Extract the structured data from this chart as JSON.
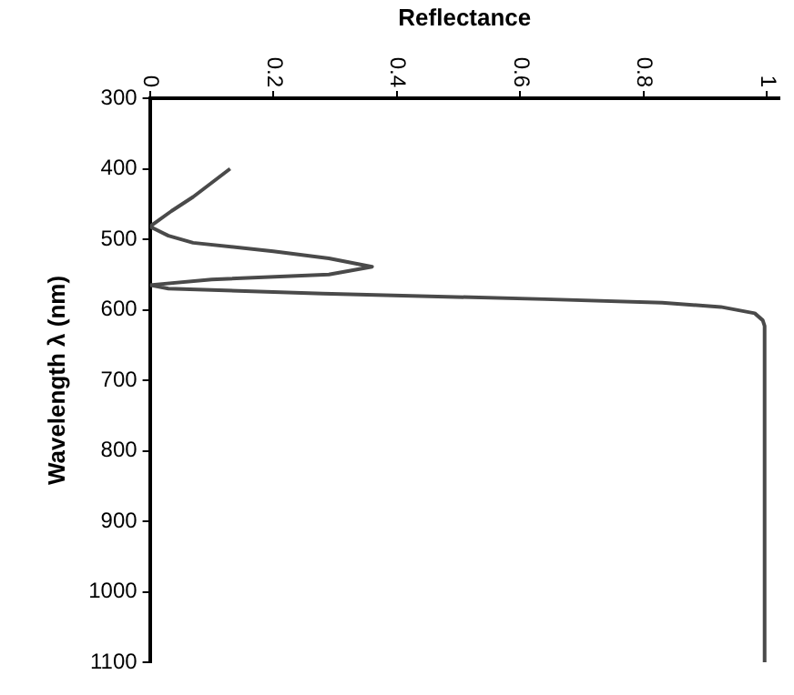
{
  "chart_data": {
    "type": "line",
    "orientation": "horizontal",
    "xlabel": "Reflectance",
    "ylabel": "Wavelength λ (nm)",
    "x": [
      400,
      420,
      440,
      460,
      482,
      495,
      505,
      517,
      527,
      539,
      550,
      557,
      565,
      570,
      577,
      585,
      590,
      596,
      605,
      615,
      623,
      700,
      800,
      900,
      1000,
      1100
    ],
    "series": [
      {
        "color": "#4a4a4a",
        "values": [
          0.13,
          0.1,
          0.07,
          0.035,
          0.0,
          0.03,
          0.07,
          0.2,
          0.29,
          0.36,
          0.29,
          0.1,
          0.0,
          0.03,
          0.28,
          0.64,
          0.83,
          0.925,
          0.98,
          0.993,
          0.996,
          0.996,
          0.996,
          0.996,
          0.996,
          0.996
        ]
      }
    ],
    "xlim": [
      0,
      1.02
    ],
    "xticks": [
      0,
      0.2,
      0.4,
      0.6,
      0.8,
      1
    ],
    "ylim": [
      1100,
      300
    ],
    "yticks": [
      300,
      400,
      500,
      600,
      700,
      800,
      900,
      1000,
      1100
    ],
    "grid": false,
    "legend": false,
    "marker": "none"
  }
}
